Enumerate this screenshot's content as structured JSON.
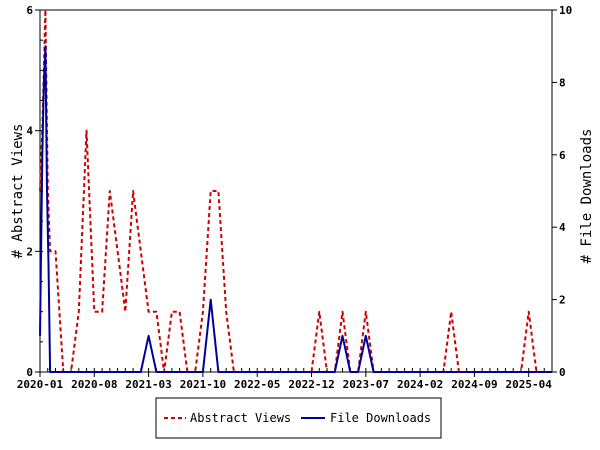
{
  "chart_data": {
    "type": "line",
    "x_tick_labels": [
      "2020-01",
      "2020-08",
      "2021-03",
      "2021-10",
      "2022-05",
      "2022-12",
      "2023-07",
      "2024-02",
      "2024-09",
      "2025-04"
    ],
    "x_tick_months": [
      0,
      7,
      14,
      21,
      28,
      35,
      42,
      49,
      56,
      63
    ],
    "xlim_months": [
      0,
      66
    ],
    "ylim_left": [
      0,
      6
    ],
    "yticks_left": [
      0,
      2,
      4,
      6
    ],
    "ylim_right": [
      0,
      10
    ],
    "yticks_right": [
      0,
      2,
      4,
      6,
      8,
      10
    ],
    "ylabel_left": "# Abstract Views",
    "ylabel_right": "# File Downloads",
    "legend_position": "bottom",
    "series": [
      {
        "name": "Abstract Views",
        "axis": "left",
        "color": "#cc0000",
        "style": "dashed",
        "points": [
          [
            0,
            3
          ],
          [
            0.3,
            4
          ],
          [
            0.5,
            5
          ],
          [
            0.7,
            6
          ],
          [
            1.0,
            3
          ],
          [
            1.3,
            2
          ],
          [
            2,
            2
          ],
          [
            2.5,
            1
          ],
          [
            3,
            0
          ],
          [
            4,
            0
          ],
          [
            5,
            1
          ],
          [
            6,
            4
          ],
          [
            7,
            1
          ],
          [
            8,
            1
          ],
          [
            9,
            3
          ],
          [
            10,
            2
          ],
          [
            11,
            1
          ],
          [
            12,
            3
          ],
          [
            13,
            2
          ],
          [
            14,
            1
          ],
          [
            15,
            1
          ],
          [
            16,
            0
          ],
          [
            17,
            1
          ],
          [
            18,
            1
          ],
          [
            19,
            0
          ],
          [
            20,
            0
          ],
          [
            21,
            1
          ],
          [
            22,
            3
          ],
          [
            23,
            3
          ],
          [
            24,
            1
          ],
          [
            25,
            0
          ],
          [
            26,
            0
          ],
          [
            27,
            0
          ],
          [
            28,
            0
          ],
          [
            29,
            0
          ],
          [
            30,
            0
          ],
          [
            31,
            0
          ],
          [
            32,
            0
          ],
          [
            33,
            0
          ],
          [
            34,
            0
          ],
          [
            35,
            0
          ],
          [
            36,
            1
          ],
          [
            37,
            0
          ],
          [
            38,
            0
          ],
          [
            39,
            1
          ],
          [
            40,
            0
          ],
          [
            41,
            0
          ],
          [
            42,
            1
          ],
          [
            43,
            0
          ],
          [
            44,
            0
          ],
          [
            45,
            0
          ],
          [
            46,
            0
          ],
          [
            47,
            0
          ],
          [
            48,
            0
          ],
          [
            49,
            0
          ],
          [
            50,
            0
          ],
          [
            51,
            0
          ],
          [
            52,
            0
          ],
          [
            53,
            1
          ],
          [
            54,
            0
          ],
          [
            55,
            0
          ],
          [
            56,
            0
          ],
          [
            57,
            0
          ],
          [
            58,
            0
          ],
          [
            59,
            0
          ],
          [
            60,
            0
          ],
          [
            61,
            0
          ],
          [
            62,
            0
          ],
          [
            63,
            1
          ],
          [
            64,
            0
          ],
          [
            65,
            0
          ],
          [
            66,
            0
          ]
        ]
      },
      {
        "name": "File Downloads",
        "axis": "right",
        "color": "#000099",
        "style": "solid",
        "points": [
          [
            0,
            1
          ],
          [
            0.3,
            6
          ],
          [
            0.5,
            8
          ],
          [
            0.7,
            9
          ],
          [
            0.9,
            5
          ],
          [
            1.1,
            3
          ],
          [
            1.3,
            0
          ],
          [
            2,
            0
          ],
          [
            3,
            0
          ],
          [
            4,
            0
          ],
          [
            5,
            0
          ],
          [
            6,
            0
          ],
          [
            7,
            0
          ],
          [
            8,
            0
          ],
          [
            9,
            0
          ],
          [
            10,
            0
          ],
          [
            11,
            0
          ],
          [
            12,
            0
          ],
          [
            13,
            0
          ],
          [
            14,
            1
          ],
          [
            15,
            0
          ],
          [
            16,
            0
          ],
          [
            17,
            0
          ],
          [
            18,
            0
          ],
          [
            19,
            0
          ],
          [
            20,
            0
          ],
          [
            21,
            0
          ],
          [
            22,
            2
          ],
          [
            23,
            0
          ],
          [
            24,
            0
          ],
          [
            25,
            0
          ],
          [
            26,
            0
          ],
          [
            27,
            0
          ],
          [
            28,
            0
          ],
          [
            29,
            0
          ],
          [
            30,
            0
          ],
          [
            31,
            0
          ],
          [
            32,
            0
          ],
          [
            33,
            0
          ],
          [
            34,
            0
          ],
          [
            35,
            0
          ],
          [
            36,
            0
          ],
          [
            37,
            0
          ],
          [
            38,
            0
          ],
          [
            39,
            1
          ],
          [
            40,
            0
          ],
          [
            41,
            0
          ],
          [
            42,
            1
          ],
          [
            43,
            0
          ],
          [
            44,
            0
          ],
          [
            45,
            0
          ],
          [
            46,
            0
          ],
          [
            47,
            0
          ],
          [
            48,
            0
          ],
          [
            49,
            0
          ],
          [
            50,
            0
          ],
          [
            51,
            0
          ],
          [
            52,
            0
          ],
          [
            53,
            0
          ],
          [
            54,
            0
          ],
          [
            55,
            0
          ],
          [
            56,
            0
          ],
          [
            57,
            0
          ],
          [
            58,
            0
          ],
          [
            59,
            0
          ],
          [
            60,
            0
          ],
          [
            61,
            0
          ],
          [
            62,
            0
          ],
          [
            63,
            0
          ],
          [
            64,
            0
          ],
          [
            65,
            0
          ],
          [
            66,
            0
          ]
        ]
      }
    ]
  }
}
